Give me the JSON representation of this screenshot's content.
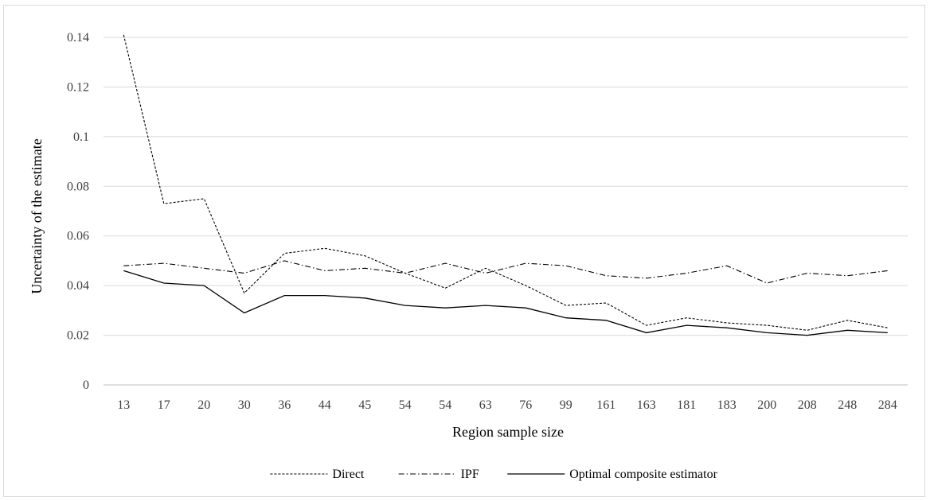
{
  "chart_data": {
    "type": "line",
    "title": "",
    "xlabel": "Region sample size",
    "ylabel": "Uncertainty of the estimate",
    "ylim": [
      0,
      0.14
    ],
    "yticks": [
      "0",
      "0.02",
      "0.04",
      "0.06",
      "0.08",
      "0.1",
      "0.12",
      "0.14"
    ],
    "grid": true,
    "legend_position": "bottom",
    "categories": [
      "13",
      "17",
      "20",
      "30",
      "36",
      "44",
      "45",
      "54",
      "54",
      "63",
      "76",
      "99",
      "161",
      "163",
      "181",
      "183",
      "200",
      "208",
      "248",
      "284"
    ],
    "series": [
      {
        "name": "Direct",
        "style": "dashed",
        "color": "#000000",
        "values": [
          0.141,
          0.073,
          0.075,
          0.037,
          0.053,
          0.055,
          0.052,
          0.045,
          0.039,
          0.047,
          0.04,
          0.032,
          0.033,
          0.024,
          0.027,
          0.025,
          0.024,
          0.022,
          0.026,
          0.023
        ]
      },
      {
        "name": "IPF",
        "style": "dashdot",
        "color": "#000000",
        "values": [
          0.048,
          0.049,
          0.047,
          0.045,
          0.05,
          0.046,
          0.047,
          0.045,
          0.049,
          0.045,
          0.049,
          0.048,
          0.044,
          0.043,
          0.045,
          0.048,
          0.041,
          0.045,
          0.044,
          0.046
        ]
      },
      {
        "name": "Optimal composite estimator",
        "style": "solid",
        "color": "#000000",
        "values": [
          0.046,
          0.041,
          0.04,
          0.029,
          0.036,
          0.036,
          0.035,
          0.032,
          0.031,
          0.032,
          0.031,
          0.027,
          0.026,
          0.021,
          0.024,
          0.023,
          0.021,
          0.02,
          0.022,
          0.021
        ]
      }
    ]
  }
}
